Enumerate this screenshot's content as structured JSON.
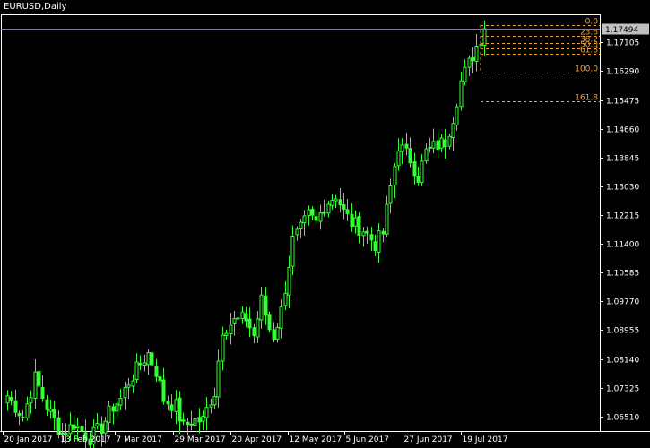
{
  "window": {
    "title": "EURUSD,Daily"
  },
  "colors": {
    "background": "#000000",
    "candle": "#33ff33",
    "fibonacci": "#e8a33c",
    "price_badge": "#c0c0c0",
    "price_line": "#8080a0"
  },
  "current_price": {
    "value": 1.17494,
    "label": "1.17494"
  },
  "fibonacci": {
    "high": 1.176,
    "low": 1.1626,
    "levels": [
      {
        "ratio": 0.0,
        "label": "0.0"
      },
      {
        "ratio": 0.236,
        "label": "23.6"
      },
      {
        "ratio": 0.382,
        "label": "38.2"
      },
      {
        "ratio": 0.5,
        "label": "50.0"
      },
      {
        "ratio": 0.618,
        "label": "61.8"
      },
      {
        "ratio": 1.0,
        "label": "100.0"
      },
      {
        "ratio": 1.618,
        "label": "161.8"
      }
    ]
  },
  "chart_data": {
    "type": "candlestick",
    "symbol": "EURUSD",
    "timeframe": "Daily",
    "ylim": [
      1.061,
      1.179
    ],
    "y_ticks": [
      "1.17105",
      "1.16290",
      "1.15475",
      "1.14660",
      "1.13845",
      "1.13030",
      "1.12215",
      "1.11400",
      "1.10585",
      "1.09770",
      "1.08955",
      "1.08140",
      "1.07325",
      "1.06510"
    ],
    "x_ticks": [
      "20 Jan 2017",
      "13 Feb 2017",
      "7 Mar 2017",
      "29 Mar 2017",
      "20 Apr 2017",
      "12 May 2017",
      "5 Jun 2017",
      "27 Jun 2017",
      "19 Jul 2017"
    ],
    "keypoints": [
      [
        0,
        1.071
      ],
      [
        4,
        1.065
      ],
      [
        7,
        1.076
      ],
      [
        10,
        1.068
      ],
      [
        14,
        1.06
      ],
      [
        17,
        1.063
      ],
      [
        21,
        1.059
      ],
      [
        24,
        1.062
      ],
      [
        27,
        1.068
      ],
      [
        29,
        1.07
      ],
      [
        31,
        1.075
      ],
      [
        34,
        1.08
      ],
      [
        36,
        1.083
      ],
      [
        38,
        1.078
      ],
      [
        40,
        1.07
      ],
      [
        43,
        1.068
      ],
      [
        45,
        1.062
      ],
      [
        47,
        1.064
      ],
      [
        50,
        1.064
      ],
      [
        52,
        1.07
      ],
      [
        53,
        1.072
      ],
      [
        55,
        1.09
      ],
      [
        58,
        1.092
      ],
      [
        61,
        1.093
      ],
      [
        63,
        1.088
      ],
      [
        65,
        1.098
      ],
      [
        67,
        1.09
      ],
      [
        68,
        1.088
      ],
      [
        70,
        1.095
      ],
      [
        73,
        1.115
      ],
      [
        75,
        1.118
      ],
      [
        77,
        1.122
      ],
      [
        79,
        1.12
      ],
      [
        81,
        1.125
      ],
      [
        84,
        1.128
      ],
      [
        86,
        1.123
      ],
      [
        88,
        1.12
      ],
      [
        91,
        1.118
      ],
      [
        94,
        1.114
      ],
      [
        96,
        1.117
      ],
      [
        98,
        1.13
      ],
      [
        100,
        1.142
      ],
      [
        103,
        1.138
      ],
      [
        105,
        1.133
      ],
      [
        107,
        1.14
      ],
      [
        110,
        1.142
      ],
      [
        112,
        1.143
      ],
      [
        114,
        1.15
      ],
      [
        116,
        1.16
      ],
      [
        118,
        1.165
      ],
      [
        120,
        1.17
      ],
      [
        122,
        1.1749
      ]
    ],
    "n_candles": 123
  }
}
